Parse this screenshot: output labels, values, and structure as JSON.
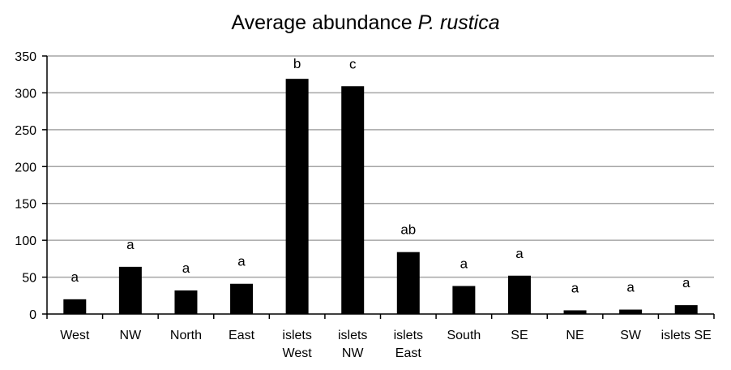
{
  "chart_data": {
    "type": "bar",
    "title": "Average abundance",
    "title_species": "P. rustica",
    "xlabel": "",
    "ylabel": "",
    "ylim": [
      0,
      350
    ],
    "yticks": [
      0,
      50,
      100,
      150,
      200,
      250,
      300,
      350
    ],
    "grid": true,
    "legend": "none",
    "bar_color": "#000000",
    "categories": [
      [
        "West"
      ],
      [
        "NW"
      ],
      [
        "North"
      ],
      [
        "East"
      ],
      [
        "islets",
        "West"
      ],
      [
        "islets",
        "NW"
      ],
      [
        "islets",
        "East"
      ],
      [
        "South"
      ],
      [
        "SE"
      ],
      [
        "NE"
      ],
      [
        "SW"
      ],
      [
        "islets SE"
      ]
    ],
    "values": [
      20,
      64,
      32,
      41,
      319,
      309,
      84,
      38,
      52,
      5,
      6,
      12
    ],
    "significance_letters": [
      "a",
      "a",
      "a",
      "a",
      "b",
      "c",
      "ab",
      "a",
      "a",
      "a",
      "a",
      "a"
    ]
  }
}
